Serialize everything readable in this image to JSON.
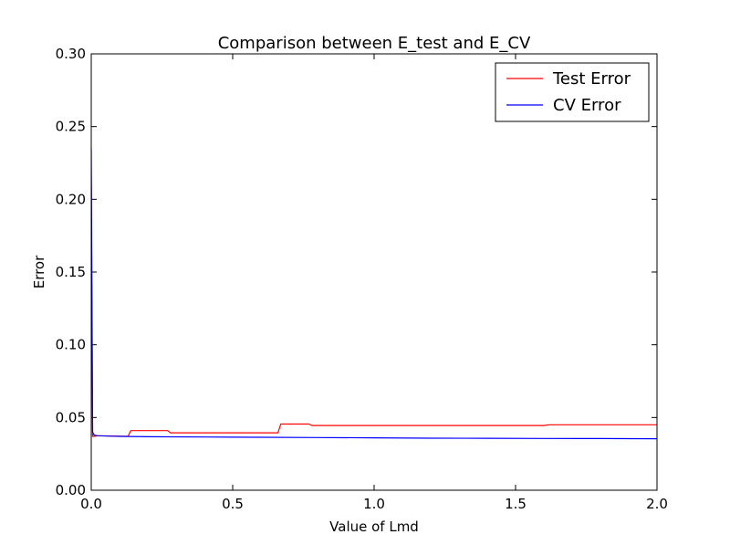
{
  "chart_data": {
    "type": "line",
    "title": "Comparison between E_test and E_CV",
    "xlabel": "Value of Lmd",
    "ylabel": "Error",
    "xlim": [
      0.0,
      2.0
    ],
    "ylim": [
      0.0,
      0.3
    ],
    "xticks": [
      "0.0",
      "0.5",
      "1.0",
      "1.5",
      "2.0"
    ],
    "yticks": [
      "0.00",
      "0.05",
      "0.10",
      "0.15",
      "0.20",
      "0.25",
      "0.30"
    ],
    "grid": false,
    "legend_position": "top-right",
    "series": [
      {
        "name": "Test Error",
        "color": "#ff0000",
        "x": [
          0.0,
          0.005,
          0.01,
          0.02,
          0.13,
          0.14,
          0.27,
          0.28,
          0.66,
          0.67,
          0.77,
          0.78,
          1.0,
          1.35,
          1.6,
          1.62,
          2.0
        ],
        "y": [
          0.21,
          0.037,
          0.037,
          0.0375,
          0.037,
          0.041,
          0.041,
          0.0395,
          0.0395,
          0.0455,
          0.0455,
          0.0445,
          0.0445,
          0.0445,
          0.0445,
          0.045,
          0.045
        ]
      },
      {
        "name": "CV Error",
        "color": "#0000ff",
        "x": [
          0.0,
          0.005,
          0.01,
          0.02,
          0.1,
          0.2,
          0.4,
          0.6,
          0.8,
          1.0,
          1.2,
          1.4,
          1.6,
          1.8,
          2.0
        ],
        "y": [
          0.235,
          0.04,
          0.038,
          0.0375,
          0.037,
          0.0368,
          0.0366,
          0.0364,
          0.0362,
          0.036,
          0.0358,
          0.0357,
          0.0356,
          0.0355,
          0.0354
        ]
      }
    ]
  }
}
